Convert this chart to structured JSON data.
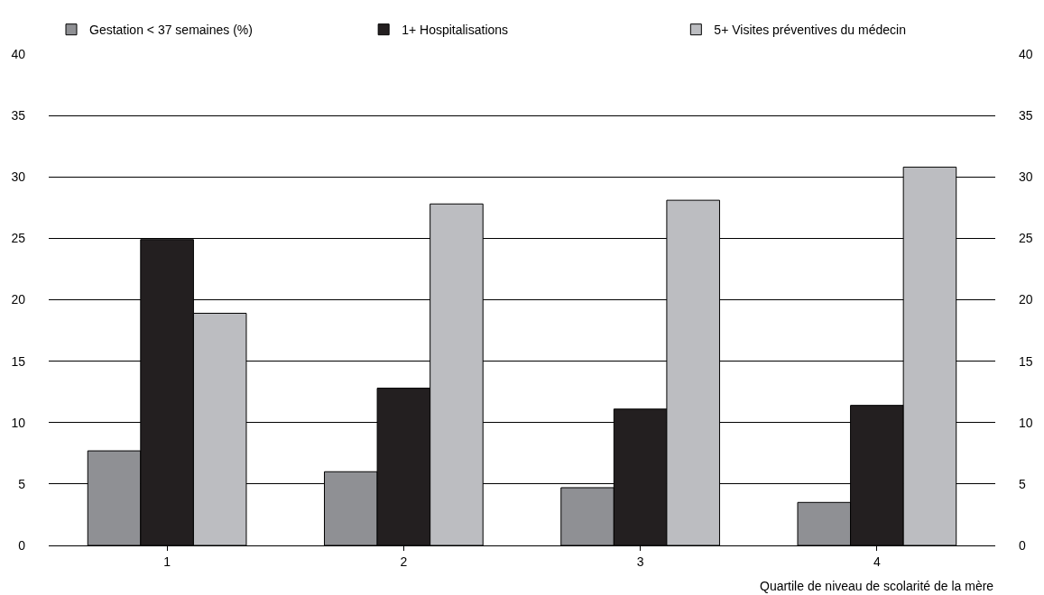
{
  "chart_data": {
    "type": "bar",
    "xlabel": "Quartile de niveau de scolarité de la mère",
    "categories": [
      "1",
      "2",
      "3",
      "4"
    ],
    "series": [
      {
        "name": "Gestation < 37 semaines (%)",
        "color": "#8f9094",
        "values": [
          7.7,
          6.0,
          4.7,
          3.5
        ]
      },
      {
        "name": "1+ Hospitalisations",
        "color": "#231f20",
        "values": [
          24.9,
          12.8,
          11.1,
          11.4
        ]
      },
      {
        "name": "5+ Visites préventives du médecin",
        "color": "#bcbdc1",
        "values": [
          18.9,
          27.8,
          28.1,
          30.8
        ]
      }
    ],
    "ylim": [
      0,
      40
    ],
    "yticks": [
      0,
      5,
      10,
      15,
      20,
      25,
      30,
      35,
      40
    ],
    "y2lim": [
      0,
      40
    ],
    "y2ticks": [
      0,
      5,
      10,
      15,
      20,
      25,
      30,
      35,
      40
    ],
    "grid": "y",
    "legend": "top"
  }
}
